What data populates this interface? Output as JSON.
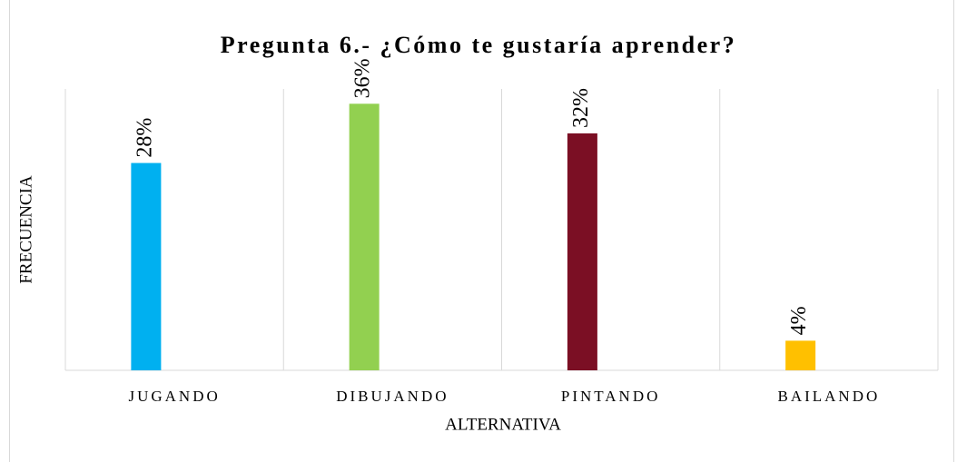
{
  "chart_data": {
    "type": "bar",
    "title": "Pregunta 6.- ¿Cómo te gustaría aprender?",
    "x_label": "ALTERNATIVA",
    "y_label": "FRECUENCIA",
    "categories": [
      "JUGANDO",
      "DIBUJANDO",
      "PINTANDO",
      "BAILANDO"
    ],
    "values": [
      28,
      36,
      32,
      4
    ],
    "value_labels": [
      "28%",
      "36%",
      "32%",
      "4%"
    ],
    "colors": [
      "#00b0f0",
      "#92d050",
      "#7b0f24",
      "#ffc000"
    ],
    "ylim": [
      0,
      38
    ]
  }
}
